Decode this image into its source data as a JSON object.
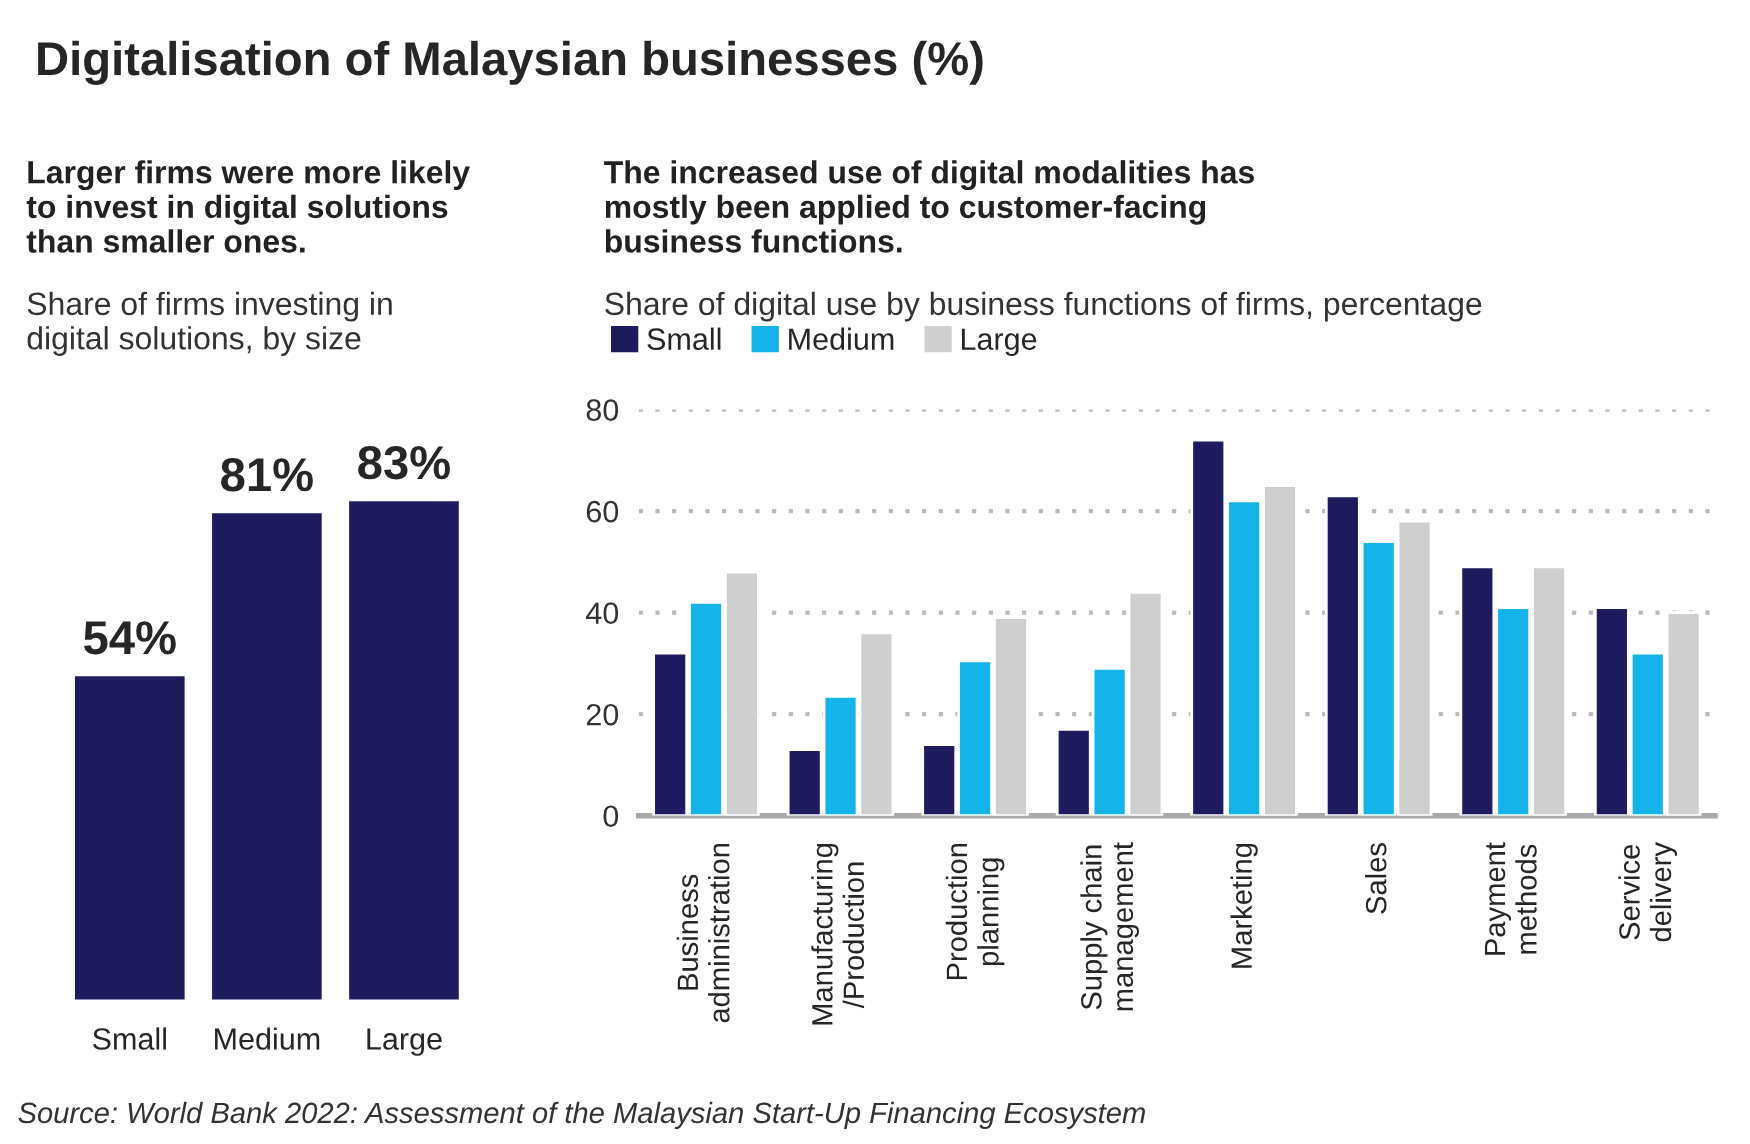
{
  "chart_data": [
    {
      "type": "bar",
      "title": "Larger firms were more likely\nto invest in digital solutions\nthan smaller ones.",
      "subtitle": "Share of firms investing in\ndigital solutions, by size",
      "annotations": [
        "Digitalisation of Malaysian businesses (%)"
      ],
      "categories": [
        "Small",
        "Medium",
        "Large"
      ],
      "values": [
        54,
        81,
        83
      ],
      "color": "#1e1b5e",
      "value_labels": [
        "54%",
        "81%",
        "83%"
      ],
      "tick_labels": "x",
      "grid": false,
      "legend": false
    },
    {
      "type": "bar",
      "title": "The increased use of digital modalities has\nmostly been applied to customer-facing\nbusiness functions.",
      "subtitle": "Share of digital use by business functions of firms, percentage",
      "annotations": [
        "Source: World Bank 2022: Assessment of the Malaysian Start-Up Financing Ecosystem"
      ],
      "categories": [
        "Business\nadministration",
        "Manufacturing\n/Production",
        "Production\nplanning",
        "Supply chain\nmanagement",
        "Marketing",
        "Sales",
        "Payment\nmethods",
        "Service\ndelivery"
      ],
      "series": [
        {
          "name": "Small",
          "color": "#1e1b5e",
          "values": [
            32,
            13,
            14,
            17,
            74,
            63,
            49,
            41
          ]
        },
        {
          "name": "Medium",
          "color": "#14b4ea",
          "values": [
            42,
            23.5,
            30.5,
            29,
            62,
            54,
            41,
            32
          ]
        },
        {
          "name": "Large",
          "color": "#cfcfcf",
          "values": [
            48,
            36,
            39,
            44,
            65,
            58,
            49,
            40
          ]
        }
      ],
      "ylim": [
        0,
        80
      ],
      "yticks": [
        0,
        20,
        40,
        60,
        80
      ],
      "grid": "y",
      "legend": "top left"
    }
  ]
}
